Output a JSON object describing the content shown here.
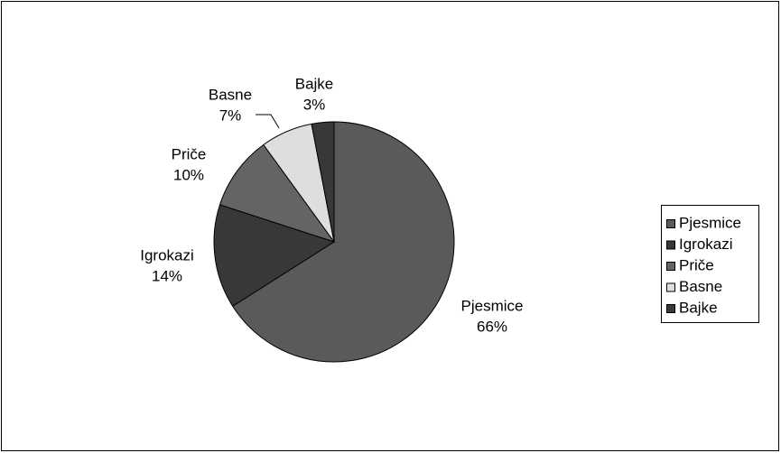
{
  "chart_data": {
    "type": "pie",
    "categories": [
      "Pjesmice",
      "Igrokazi",
      "Priče",
      "Basne",
      "Bajke"
    ],
    "values": [
      66,
      14,
      10,
      7,
      3
    ],
    "value_labels": [
      "66%",
      "14%",
      "10%",
      "7%",
      "3%"
    ],
    "colors": [
      "#5a5a5a",
      "#383838",
      "#646464",
      "#dedede",
      "#383838"
    ],
    "legend": "right"
  }
}
